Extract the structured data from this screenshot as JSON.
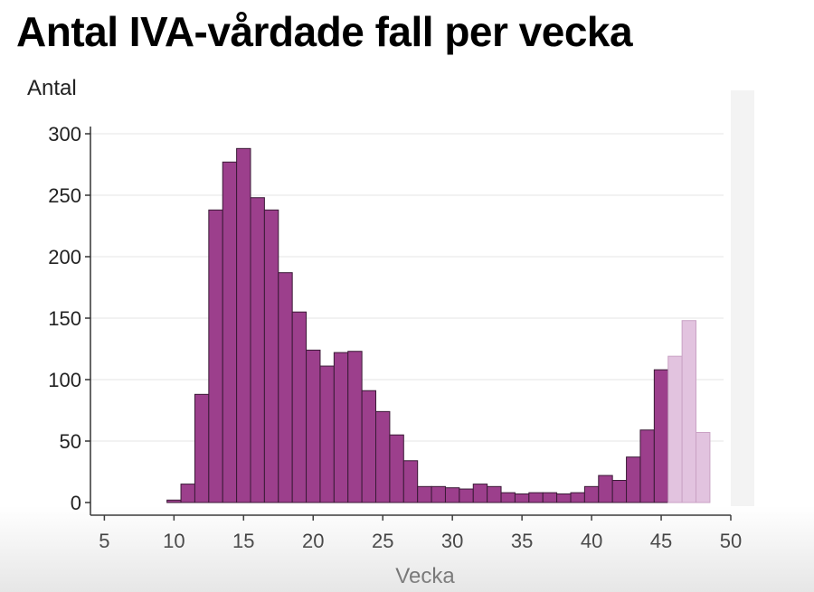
{
  "title": "Antal IVA-vårdade fall per vecka",
  "chart_data": {
    "type": "bar",
    "title": "Antal IVA-vårdade fall per vecka",
    "xlabel": "Vecka",
    "ylabel": "Antal",
    "xlim": [
      4,
      50
    ],
    "ylim": [
      0,
      300
    ],
    "xticks": [
      5,
      10,
      15,
      20,
      25,
      30,
      35,
      40,
      45,
      50
    ],
    "yticks": [
      0,
      50,
      100,
      150,
      200,
      250,
      300
    ],
    "grid": "horizontal",
    "colors": {
      "final": "#9c3f8c",
      "preliminary": "#e2c3df",
      "edge": "#3a1a36"
    },
    "series": [
      {
        "x": [
          10,
          11,
          12,
          13,
          14,
          15,
          16,
          17,
          18,
          19,
          20,
          21,
          22,
          23,
          24,
          25,
          26,
          27,
          28,
          29,
          30,
          31,
          32,
          33,
          34,
          35,
          36,
          37,
          38,
          39,
          40,
          41,
          42,
          43,
          44,
          45
        ],
        "values": [
          2,
          15,
          88,
          238,
          277,
          288,
          248,
          238,
          187,
          155,
          124,
          111,
          122,
          123,
          91,
          74,
          55,
          34,
          13,
          13,
          12,
          11,
          15,
          13,
          8,
          7,
          8,
          8,
          7,
          8,
          13,
          22,
          18,
          37,
          59,
          108
        ],
        "status": "final"
      },
      {
        "x": [
          46,
          47,
          48
        ],
        "values": [
          119,
          148,
          57
        ],
        "status": "preliminary"
      }
    ]
  }
}
